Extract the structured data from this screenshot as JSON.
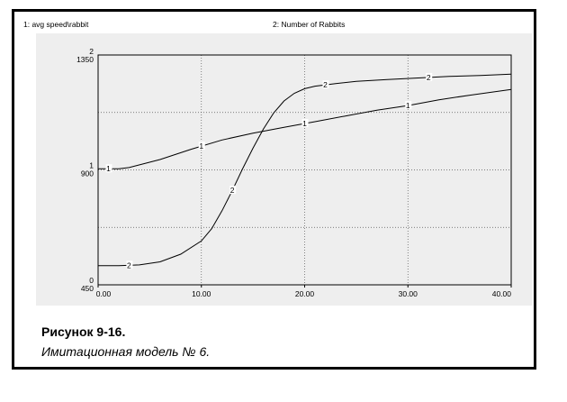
{
  "chart_data": {
    "type": "line",
    "series_header_1": "1: avg  speed\\rabbit",
    "series_header_2": "2: Number of Rabbits",
    "x_ticks": [
      "0.00",
      "10.00",
      "20.00",
      "30.00",
      "40.00"
    ],
    "xlim": [
      0,
      40
    ],
    "axis1": {
      "max_label": "2",
      "mid_label": "1",
      "min_label": "0",
      "ylim": [
        0,
        2
      ]
    },
    "axis2": {
      "max_label": "1350",
      "mid_label": "900",
      "min_label": "450",
      "ylim": [
        450,
        1350
      ]
    },
    "grid": "dotted",
    "series": [
      {
        "name": "1",
        "x": [
          0,
          2,
          3,
          6,
          9,
          12,
          15,
          18,
          21,
          24,
          27,
          30,
          33,
          36,
          40
        ],
        "values": [
          1.01,
          1.01,
          1.02,
          1.09,
          1.18,
          1.26,
          1.32,
          1.37,
          1.42,
          1.47,
          1.52,
          1.56,
          1.61,
          1.65,
          1.7
        ],
        "marker_x": [
          1,
          10,
          20,
          30
        ]
      },
      {
        "name": "2",
        "x": [
          0,
          2,
          4,
          6,
          8,
          10,
          11,
          12,
          13,
          14,
          15,
          16,
          17,
          18,
          19,
          20,
          21,
          23,
          25,
          28,
          31,
          34,
          37,
          40
        ],
        "values": [
          525,
          525,
          528,
          540,
          570,
          622,
          670,
          740,
          820,
          905,
          985,
          1060,
          1123,
          1170,
          1200,
          1218,
          1228,
          1238,
          1247,
          1254,
          1260,
          1266,
          1270,
          1275
        ],
        "marker_x": [
          3,
          13,
          22,
          32
        ]
      }
    ]
  },
  "caption": {
    "title": "Рисунок 9-16.",
    "subtitle": "Имитационная модель № 6."
  }
}
